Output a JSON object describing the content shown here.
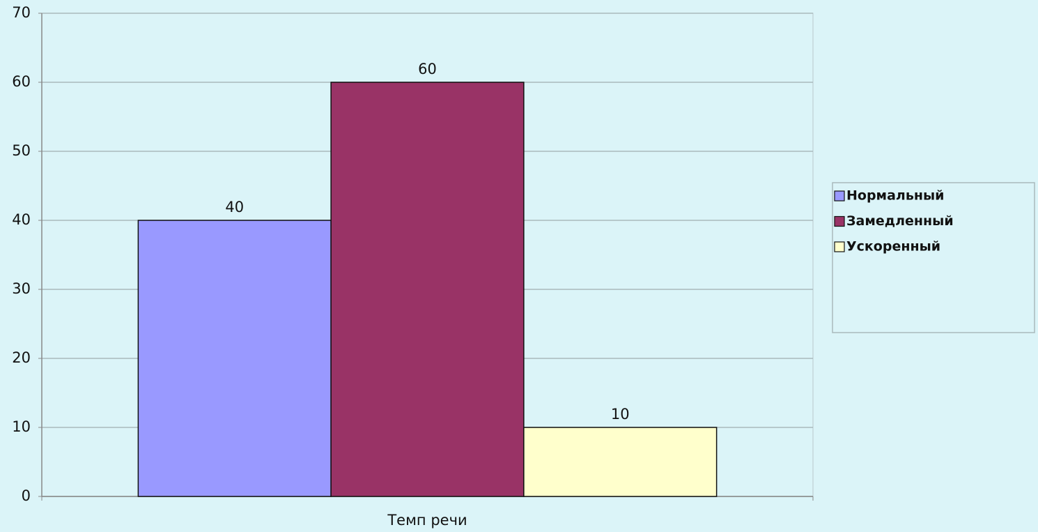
{
  "chart_data": {
    "type": "bar",
    "categories": [
      "Темп речи"
    ],
    "series": [
      {
        "name": "Нормальный",
        "color": "#9999ff",
        "values": [
          40
        ]
      },
      {
        "name": "Замедленный",
        "color": "#993366",
        "values": [
          60
        ]
      },
      {
        "name": "Ускоренный",
        "color": "#ffffcc",
        "values": [
          10
        ]
      }
    ],
    "ylim": [
      0,
      70
    ],
    "yticks": [
      0,
      10,
      20,
      30,
      40,
      50,
      60,
      70
    ],
    "grid": true,
    "legend": "right"
  }
}
